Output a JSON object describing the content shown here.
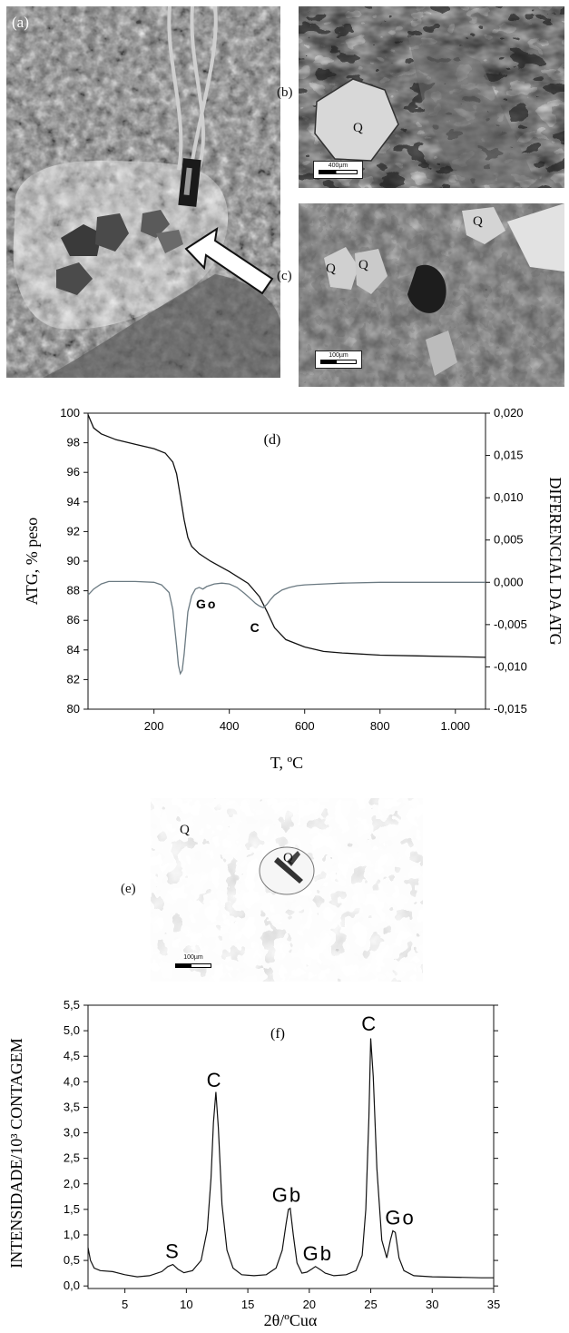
{
  "panels": {
    "a": {
      "label": "(a)"
    },
    "b": {
      "label": "(b)",
      "minerals": [
        "Q"
      ],
      "scale": "400µm"
    },
    "c": {
      "label": "(c)",
      "minerals": [
        "Q",
        "Q",
        "Q"
      ],
      "scale": "100µm"
    },
    "e": {
      "label": "(e)",
      "minerals": [
        "Q",
        "Q"
      ],
      "scale": "100µm"
    }
  },
  "chart_data": [
    {
      "type": "line",
      "panel_label": "(d)",
      "xlabel": "T, ºC",
      "ylabel_left": "ATG, % peso",
      "ylabel_right": "DIFERENCIAL DA ATG",
      "xlim": [
        25,
        1080
      ],
      "ylim_left": [
        80,
        100
      ],
      "ylim_right": [
        -0.015,
        0.02
      ],
      "xticks": [
        "200",
        "400",
        "600",
        "800",
        "1.000"
      ],
      "xtick_values": [
        200,
        400,
        600,
        800,
        1000
      ],
      "yticks_left": [
        "80",
        "82",
        "84",
        "86",
        "88",
        "90",
        "92",
        "94",
        "96",
        "98",
        "100"
      ],
      "yticks_right": [
        "-0,015",
        "-0,010",
        "-0,005",
        "0,000",
        "0,005",
        "0,010",
        "0,015",
        "0,020"
      ],
      "annotations": [
        {
          "text": "Go",
          "x": 340,
          "y": 86.8
        },
        {
          "text": "C",
          "x": 470,
          "y": 85.2
        }
      ],
      "series": [
        {
          "axis": "left",
          "color": "#111111",
          "x": [
            25,
            40,
            60,
            100,
            150,
            200,
            230,
            250,
            260,
            270,
            280,
            290,
            300,
            320,
            350,
            400,
            450,
            480,
            500,
            520,
            550,
            600,
            650,
            700,
            800,
            900,
            1000,
            1080
          ],
          "y": [
            99.9,
            99.0,
            98.6,
            98.2,
            97.9,
            97.6,
            97.3,
            96.7,
            95.9,
            94.4,
            92.8,
            91.6,
            91.0,
            90.5,
            90.0,
            89.3,
            88.5,
            87.6,
            86.6,
            85.5,
            84.7,
            84.2,
            83.9,
            83.8,
            83.65,
            83.6,
            83.55,
            83.5
          ]
        },
        {
          "axis": "right",
          "color": "#6b7a82",
          "x": [
            25,
            40,
            60,
            80,
            100,
            150,
            200,
            220,
            240,
            250,
            260,
            265,
            270,
            275,
            280,
            290,
            300,
            310,
            320,
            330,
            340,
            360,
            380,
            400,
            420,
            440,
            460,
            470,
            480,
            490,
            500,
            510,
            520,
            540,
            560,
            580,
            600,
            650,
            700,
            800,
            900,
            1000,
            1080
          ],
          "y": [
            -0.0015,
            -0.0008,
            -0.0002,
            0.0001,
            0.0001,
            0.0001,
            0.0,
            -0.0003,
            -0.0012,
            -0.0032,
            -0.0075,
            -0.0098,
            -0.0108,
            -0.0104,
            -0.0085,
            -0.0035,
            -0.0016,
            -0.0008,
            -0.0006,
            -0.0008,
            -0.0005,
            -0.0002,
            -0.0001,
            -0.0002,
            -0.0006,
            -0.0013,
            -0.0021,
            -0.0025,
            -0.0028,
            -0.003,
            -0.0026,
            -0.002,
            -0.0015,
            -0.0009,
            -0.0006,
            -0.0004,
            -0.0003,
            -0.0002,
            -0.0001,
            0.0,
            0.0,
            0.0,
            0.0
          ]
        }
      ]
    },
    {
      "type": "line",
      "panel_label": "(f)",
      "xlabel": "2θ/ºCuα",
      "ylabel": "INTENSIDADE/10³ CONTAGEM",
      "xlim": [
        2,
        35
      ],
      "ylim": [
        -0.05,
        5.5
      ],
      "xticks": [
        "5",
        "10",
        "15",
        "20",
        "25",
        "30",
        "35"
      ],
      "xtick_values": [
        5,
        10,
        15,
        20,
        25,
        30,
        35
      ],
      "yticks": [
        "0,0",
        "0,5",
        "1,0",
        "1,5",
        "2,0",
        "2,5",
        "3,0",
        "3,5",
        "4,0",
        "4,5",
        "5,0",
        "5,5"
      ],
      "ytick_values": [
        0.0,
        0.5,
        1.0,
        1.5,
        2.0,
        2.5,
        3.0,
        3.5,
        4.0,
        4.5,
        5.0,
        5.5
      ],
      "annotations": [
        {
          "text": "S",
          "x": 8.9,
          "y": 0.55
        },
        {
          "text": "C",
          "x": 12.3,
          "y": 3.9
        },
        {
          "text": "Gb",
          "x": 18.2,
          "y": 1.65
        },
        {
          "text": "Gb",
          "x": 20.7,
          "y": 0.5
        },
        {
          "text": "C",
          "x": 24.9,
          "y": 5.0
        },
        {
          "text": "Go",
          "x": 27.4,
          "y": 1.2
        }
      ],
      "series": [
        {
          "color": "#111111",
          "x": [
            2.0,
            2.2,
            2.5,
            3.0,
            4.0,
            5.0,
            6.0,
            7.0,
            8.0,
            8.5,
            8.9,
            9.3,
            9.8,
            10.5,
            11.2,
            11.7,
            12.0,
            12.2,
            12.4,
            12.6,
            12.9,
            13.3,
            13.8,
            14.5,
            15.5,
            16.5,
            17.3,
            17.8,
            18.1,
            18.3,
            18.45,
            18.7,
            19.0,
            19.4,
            19.8,
            20.2,
            20.5,
            20.9,
            21.3,
            22.0,
            23.0,
            23.8,
            24.3,
            24.6,
            24.85,
            25.0,
            25.2,
            25.5,
            25.9,
            26.3,
            26.6,
            26.8,
            27.0,
            27.3,
            27.7,
            28.5,
            30.0,
            32.0,
            34.0,
            35.0
          ],
          "y": [
            0.75,
            0.5,
            0.35,
            0.3,
            0.28,
            0.22,
            0.18,
            0.2,
            0.28,
            0.38,
            0.42,
            0.33,
            0.26,
            0.3,
            0.5,
            1.1,
            2.1,
            3.2,
            3.8,
            3.1,
            1.6,
            0.7,
            0.35,
            0.22,
            0.2,
            0.22,
            0.35,
            0.7,
            1.2,
            1.5,
            1.52,
            1.0,
            0.45,
            0.25,
            0.27,
            0.33,
            0.38,
            0.32,
            0.25,
            0.2,
            0.22,
            0.3,
            0.6,
            1.5,
            3.3,
            4.85,
            4.1,
            2.3,
            0.9,
            0.55,
            0.9,
            1.08,
            1.05,
            0.55,
            0.3,
            0.2,
            0.18,
            0.17,
            0.16,
            0.16
          ]
        }
      ]
    }
  ]
}
